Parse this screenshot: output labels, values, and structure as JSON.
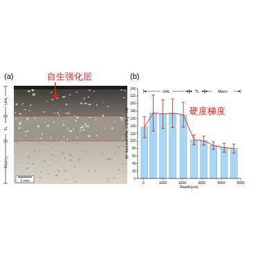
{
  "chart_data": {
    "type": "bar",
    "panel_label": "(b)",
    "x_label": "Depth(μm)",
    "y_label": "HV Hardness(MPa), 0.325kgf / 10s",
    "annotation": "硬度梯度",
    "x": [
      50,
      500,
      1000,
      1500,
      2050,
      2600,
      3100,
      3600,
      4150,
      4650
    ],
    "series": [
      {
        "type": "bar",
        "color": "#a9d6f2",
        "values": [
          137,
          175,
          172,
          174,
          170,
          103,
          101,
          88,
          82,
          80
        ],
        "errors": [
          28,
          48,
          38,
          38,
          33,
          13,
          12,
          10,
          12,
          12
        ]
      },
      {
        "type": "line",
        "color": "#e0302a",
        "values": [
          137,
          175,
          172,
          174,
          170,
          103,
          101,
          88,
          82,
          80
        ]
      }
    ],
    "regions": [
      {
        "label": "UHL",
        "from": 0,
        "to": 2350
      },
      {
        "label": "TL",
        "from": 2350,
        "to": 3150
      },
      {
        "label": "Matrix",
        "from": 3150,
        "to": 5000
      }
    ],
    "xlim": [
      -300,
      5000
    ],
    "xticks": [
      0,
      1000,
      2000,
      3000,
      4000,
      5000
    ],
    "ylim": [
      0,
      240
    ],
    "yticks": [
      0,
      20,
      40,
      60,
      80,
      100,
      120,
      140,
      160,
      180,
      200,
      220,
      240
    ],
    "grid": false
  },
  "micrograph": {
    "panel_label": "(a)",
    "annotation": "自生强化层",
    "layers": [
      "UHL",
      "TL",
      "Matrix"
    ],
    "scale_bar": "1 mm"
  }
}
